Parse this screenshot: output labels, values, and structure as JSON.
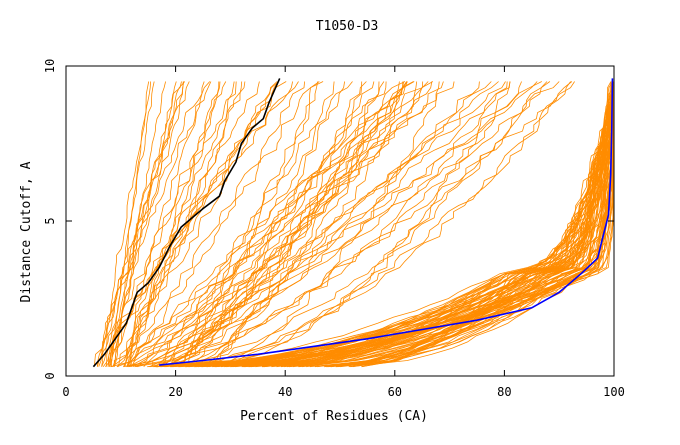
{
  "chart_data": {
    "type": "line",
    "title": "T1050-D3",
    "xlabel": "Percent of Residues (CA)",
    "ylabel": "Distance Cutoff, A",
    "xlim": [
      0,
      100
    ],
    "ylim": [
      0,
      10
    ],
    "x_ticks": [
      "0",
      "20",
      "40",
      "60",
      "80",
      "100"
    ],
    "y_ticks": [
      "0",
      "5",
      "10"
    ],
    "grid": false,
    "colors": {
      "others": "#ff8c00",
      "black_model": "#000000",
      "blue_model": "#0000ff",
      "axis": "#000000",
      "background": "#ffffff"
    },
    "highlight_series": [
      {
        "name": "black-model",
        "color": "#000000",
        "points": [
          [
            5,
            0.3
          ],
          [
            7,
            0.7
          ],
          [
            9,
            1.2
          ],
          [
            11,
            1.7
          ],
          [
            12,
            2.2
          ],
          [
            13,
            2.7
          ],
          [
            15,
            3.0
          ],
          [
            17,
            3.5
          ],
          [
            19,
            4.2
          ],
          [
            21,
            4.8
          ],
          [
            23,
            5.1
          ],
          [
            25,
            5.4
          ],
          [
            28,
            5.8
          ],
          [
            29,
            6.3
          ],
          [
            31,
            6.9
          ],
          [
            32,
            7.5
          ],
          [
            34,
            8.0
          ],
          [
            36,
            8.3
          ],
          [
            37,
            8.8
          ],
          [
            38,
            9.2
          ],
          [
            39,
            9.6
          ]
        ]
      },
      {
        "name": "blue-model",
        "color": "#0000ff",
        "points": [
          [
            17,
            0.35
          ],
          [
            25,
            0.5
          ],
          [
            35,
            0.7
          ],
          [
            45,
            0.95
          ],
          [
            55,
            1.2
          ],
          [
            65,
            1.5
          ],
          [
            75,
            1.8
          ],
          [
            85,
            2.2
          ],
          [
            90,
            2.7
          ],
          [
            94,
            3.3
          ],
          [
            97,
            3.8
          ],
          [
            98,
            4.5
          ],
          [
            99,
            5.2
          ],
          [
            99.4,
            6.5
          ],
          [
            99.6,
            8.0
          ],
          [
            99.7,
            9.6
          ]
        ]
      }
    ]
  }
}
